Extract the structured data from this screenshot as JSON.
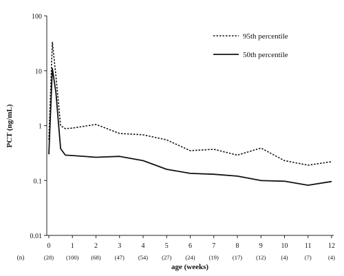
{
  "chart_data": {
    "type": "line",
    "title": "",
    "xlabel": "age (weeks)",
    "ylabel": "PCT (ng/mL)",
    "yscale": "log",
    "ylim": [
      0.01,
      100
    ],
    "xlim": [
      0,
      12
    ],
    "x_ticks": [
      "0",
      "1",
      "2",
      "3",
      "4",
      "5",
      "6",
      "7",
      "8",
      "9",
      "10",
      "11",
      "12"
    ],
    "y_ticks": [
      "0.01",
      "0.1",
      "1",
      "10",
      "100"
    ],
    "n_label": "(n)",
    "n_values": [
      "(28)",
      "(100)",
      "(68)",
      "(47)",
      "(54)",
      "(27)",
      "(24)",
      "(19)",
      "(17)",
      "(12)",
      "(4)",
      "(7)",
      "(4)"
    ],
    "grid": false,
    "legend_position": "top-right",
    "series": [
      {
        "name": "95th percentile",
        "style": "dotted",
        "color": "#111111",
        "x": [
          0,
          0.15,
          0.3,
          0.5,
          0.7,
          1,
          2,
          3,
          4,
          5,
          6,
          7,
          8,
          9,
          10,
          11,
          12
        ],
        "y": [
          0.55,
          33,
          8,
          1.0,
          0.88,
          0.9,
          1.05,
          0.72,
          0.68,
          0.55,
          0.35,
          0.37,
          0.29,
          0.39,
          0.23,
          0.19,
          0.22
        ]
      },
      {
        "name": "50th percentile",
        "style": "solid",
        "color": "#111111",
        "x": [
          0,
          0.15,
          0.3,
          0.5,
          0.7,
          1,
          2,
          3,
          4,
          5,
          6,
          7,
          8,
          9,
          10,
          11,
          12
        ],
        "y": [
          0.3,
          11,
          4,
          0.38,
          0.29,
          0.285,
          0.265,
          0.275,
          0.23,
          0.16,
          0.135,
          0.13,
          0.12,
          0.1,
          0.097,
          0.082,
          0.096
        ]
      }
    ]
  }
}
